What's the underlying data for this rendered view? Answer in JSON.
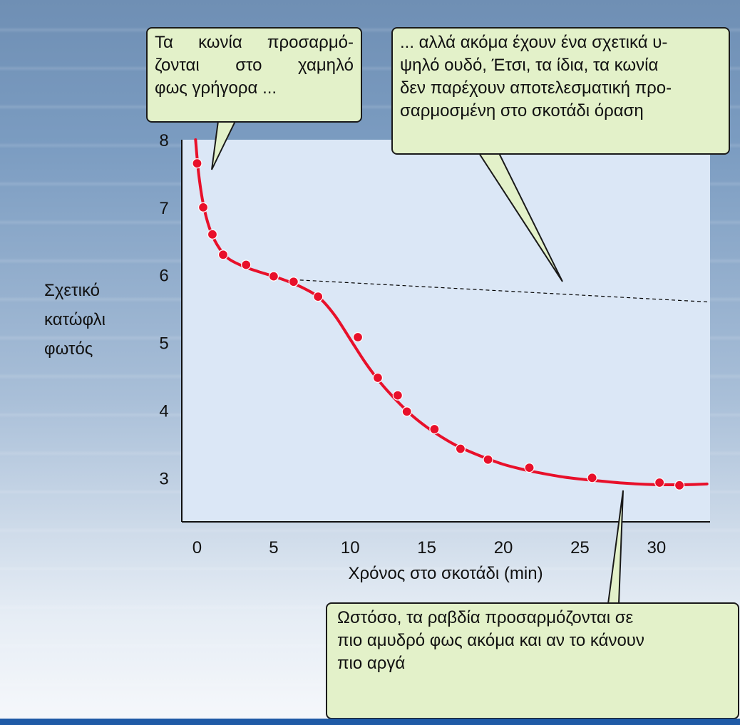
{
  "callouts": {
    "top_left": {
      "lines": [
        "Τα κωνία προσαρμό-",
        "ζονται στο χαμηλό",
        "φως γρήγορα ..."
      ]
    },
    "top_right": {
      "lines": [
        "... αλλά ακόμα έχουν ένα σχετικά υ-",
        "ψηλό ουδό, Έτσι, τα ίδια, τα κωνία",
        "δεν παρέχουν αποτελεσματική προ-",
        "σαρμοσμένη στο σκοτάδι όραση"
      ]
    },
    "bottom": {
      "lines": [
        "Ωστόσο, τα ραβδία προσαρμόζονται σε",
        "πιο αμυδρό φως ακόμα και αν το κάνουν",
        "πιο αργά"
      ]
    }
  },
  "chart_data": {
    "type": "scatter",
    "xlabel": "Χρόνος στο σκοτάδι (min)",
    "ylabel": [
      "Σχετικό",
      "κατώφλι",
      "φωτός"
    ],
    "xlim": [
      -1,
      33.5
    ],
    "ylim": [
      2.35,
      8
    ],
    "x_ticks": [
      0,
      5,
      10,
      15,
      20,
      25,
      30
    ],
    "y_ticks": [
      3,
      4,
      5,
      6,
      7,
      8
    ],
    "grid": false,
    "colors": {
      "plot_bg": "#dbe7f6",
      "curve": "#e8102a",
      "points": "#e8102a",
      "dashed": "#000000"
    },
    "series": [
      {
        "role": "measured-points",
        "points": [
          [
            0,
            7.65
          ],
          [
            0.4,
            7.0
          ],
          [
            1.0,
            6.6
          ],
          [
            1.7,
            6.3
          ],
          [
            3.2,
            6.15
          ],
          [
            5.0,
            5.98
          ],
          [
            6.3,
            5.9
          ],
          [
            7.9,
            5.68
          ],
          [
            10.5,
            5.08
          ],
          [
            11.8,
            4.48
          ],
          [
            13.1,
            4.22
          ],
          [
            13.7,
            3.98
          ],
          [
            15.5,
            3.72
          ],
          [
            17.2,
            3.43
          ],
          [
            19.0,
            3.27
          ],
          [
            21.7,
            3.15
          ],
          [
            25.8,
            3.0
          ],
          [
            30.2,
            2.93
          ],
          [
            31.5,
            2.89
          ]
        ]
      },
      {
        "role": "fitted-curve",
        "points": [
          [
            -0.1,
            8.0
          ],
          [
            0.1,
            7.5
          ],
          [
            0.4,
            7.05
          ],
          [
            0.8,
            6.7
          ],
          [
            1.3,
            6.45
          ],
          [
            2,
            6.25
          ],
          [
            3,
            6.13
          ],
          [
            4,
            6.05
          ],
          [
            5,
            5.98
          ],
          [
            6,
            5.9
          ],
          [
            7,
            5.8
          ],
          [
            8,
            5.66
          ],
          [
            9,
            5.4
          ],
          [
            10,
            5.05
          ],
          [
            11,
            4.7
          ],
          [
            12,
            4.4
          ],
          [
            13,
            4.15
          ],
          [
            14,
            3.93
          ],
          [
            15,
            3.75
          ],
          [
            16,
            3.6
          ],
          [
            17,
            3.47
          ],
          [
            18,
            3.37
          ],
          [
            19,
            3.28
          ],
          [
            20,
            3.2
          ],
          [
            21,
            3.14
          ],
          [
            22,
            3.09
          ],
          [
            24,
            3.01
          ],
          [
            26,
            2.96
          ],
          [
            28,
            2.92
          ],
          [
            30,
            2.9
          ],
          [
            32,
            2.9
          ],
          [
            33.3,
            2.91
          ]
        ]
      },
      {
        "role": "cone-threshold-extension",
        "points": [
          [
            6.3,
            5.93
          ],
          [
            33.5,
            5.6
          ]
        ]
      }
    ]
  }
}
